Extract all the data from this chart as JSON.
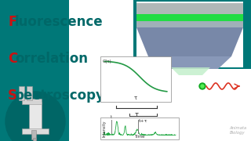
{
  "bg_color": "#007878",
  "white_bg": "#ffffff",
  "teal_dark": "#006060",
  "letter_color": "#cc1111",
  "text_color": "#006868",
  "title_lines": [
    "Fluorescence",
    "Correlation",
    "Spectroscopy"
  ],
  "title_letters": [
    "F",
    "C",
    "S"
  ],
  "microscope_circle": "#006666",
  "funnel_top_gray": "#a8b0b0",
  "funnel_green": "#22dd44",
  "funnel_mid_gray": "#7890a0",
  "funnel_dark_gray": "#6878a0",
  "funnel_lower_gray": "#8898b0",
  "funnel_bottom_light": "#b8e8c0",
  "curve_color": "#229944",
  "trace_color": "#22aa44",
  "bracket_color": "#444444",
  "dot_color": "#11aa22",
  "wave_color": "#dd3322",
  "animata_color": "#aaaaaa"
}
